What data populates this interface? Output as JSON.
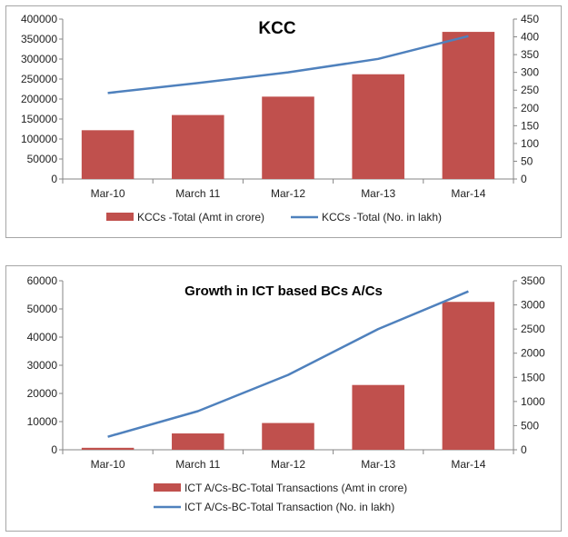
{
  "colors": {
    "bar": "#c0504d",
    "line": "#4f81bd",
    "axis": "#868686"
  },
  "chart_data": [
    {
      "type": "bar+line",
      "title": "KCC",
      "categories": [
        "Mar-10",
        "March 11",
        "Mar-12",
        "Mar-13",
        "Mar-14"
      ],
      "series": [
        {
          "name": "KCCs -Total (Amt in crore)",
          "kind": "bar",
          "axis": "left",
          "values": [
            122000,
            160000,
            206000,
            262000,
            368000
          ]
        },
        {
          "name": "KCCs -Total (No. in lakh)",
          "kind": "line",
          "axis": "right",
          "values": [
            242,
            270,
            300,
            338,
            402
          ]
        }
      ],
      "ylim_left": [
        0,
        400000
      ],
      "yticks_left": [
        "0",
        "50000",
        "100000",
        "150000",
        "200000",
        "250000",
        "300000",
        "350000",
        "400000"
      ],
      "ylim_right": [
        0,
        450
      ],
      "yticks_right": [
        "0",
        "50",
        "100",
        "150",
        "200",
        "250",
        "300",
        "350",
        "400",
        "450"
      ],
      "legend": "bottom"
    },
    {
      "type": "bar+line",
      "title": "Growth in ICT based BCs A/Cs",
      "categories": [
        "Mar-10",
        "March 11",
        "Mar-12",
        "Mar-13",
        "Mar-14"
      ],
      "series": [
        {
          "name": "ICT A/Cs-BC-Total Transactions (Amt in crore)",
          "kind": "bar",
          "axis": "left",
          "values": [
            700,
            5800,
            9500,
            23000,
            52500
          ]
        },
        {
          "name": "ICT A/Cs-BC-Total Transaction (No. in lakh)",
          "kind": "line",
          "axis": "right",
          "values": [
            270,
            800,
            1550,
            2500,
            3280
          ]
        }
      ],
      "ylim_left": [
        0,
        60000
      ],
      "yticks_left": [
        "0",
        "10000",
        "20000",
        "30000",
        "40000",
        "50000",
        "60000"
      ],
      "ylim_right": [
        0,
        3500
      ],
      "yticks_right": [
        "0",
        "500",
        "1000",
        "1500",
        "2000",
        "2500",
        "3000",
        "3500"
      ],
      "legend": "bottom"
    }
  ]
}
